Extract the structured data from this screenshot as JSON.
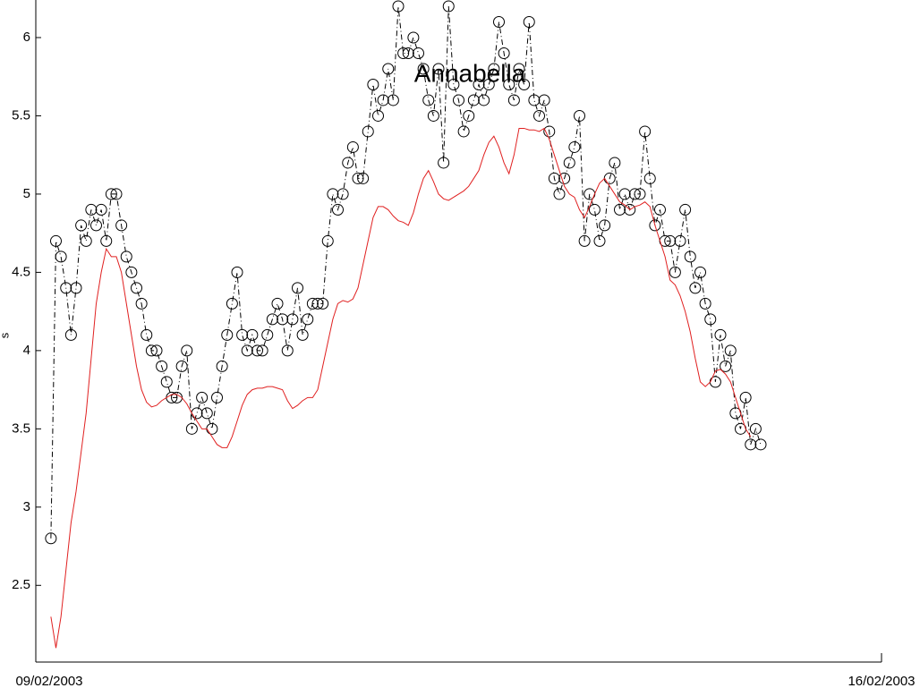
{
  "chart_data": {
    "type": "line",
    "title": "Annabella",
    "ylabel": "s",
    "x": [
      3,
      4,
      5,
      6,
      7,
      8,
      9,
      10,
      11,
      12,
      13,
      14,
      15,
      16,
      17,
      18,
      19,
      20,
      21,
      22,
      23,
      24,
      25,
      26,
      27,
      28,
      29,
      30,
      31,
      32,
      33,
      34,
      35,
      36,
      37,
      38,
      39,
      40,
      41,
      42,
      43,
      44,
      45,
      46,
      47,
      48,
      49,
      50,
      51,
      52,
      53,
      54,
      55,
      56,
      57,
      58,
      59,
      60,
      61,
      62,
      63,
      64,
      65,
      66,
      67,
      68,
      69,
      70,
      71,
      72,
      73,
      74,
      75,
      76,
      77,
      78,
      79,
      80,
      81,
      82,
      83,
      84,
      85,
      86,
      87,
      88,
      89,
      90,
      91,
      92,
      93,
      94,
      95,
      96,
      97,
      98,
      99,
      100,
      101,
      102,
      103,
      104,
      105,
      106,
      107,
      108,
      109,
      110,
      111,
      112,
      113,
      114,
      115,
      116,
      117,
      118,
      119,
      120,
      121,
      122,
      123,
      124,
      125,
      126,
      127,
      128,
      129,
      130,
      131,
      132,
      133,
      134,
      135,
      136,
      137,
      138,
      139,
      140,
      141,
      142,
      143,
      144
    ],
    "series": [
      {
        "color": "#000000",
        "style": "dashdot-circles",
        "values": [
          2.8,
          4.7,
          4.6,
          4.4,
          4.1,
          4.4,
          4.8,
          4.7,
          4.9,
          4.8,
          4.9,
          4.7,
          5.0,
          5.0,
          4.8,
          4.6,
          4.5,
          4.4,
          4.3,
          4.1,
          4.0,
          4.0,
          3.9,
          3.8,
          3.7,
          3.7,
          3.9,
          4.0,
          3.5,
          3.6,
          3.7,
          3.6,
          3.5,
          3.7,
          3.9,
          4.1,
          4.3,
          4.5,
          4.1,
          4.0,
          4.1,
          4.0,
          4.0,
          4.1,
          4.2,
          4.3,
          4.2,
          4.0,
          4.2,
          4.4,
          4.1,
          4.2,
          4.3,
          4.3,
          4.3,
          4.7,
          5.0,
          4.9,
          5.0,
          5.2,
          5.3,
          5.1,
          5.1,
          5.4,
          5.7,
          5.5,
          5.6,
          5.8,
          5.6,
          6.2,
          5.9,
          5.9,
          6.0,
          5.9,
          5.8,
          5.6,
          5.5,
          5.8,
          5.2,
          6.2,
          5.7,
          5.6,
          5.4,
          5.5,
          5.6,
          5.7,
          5.6,
          5.7,
          5.8,
          6.1,
          5.9,
          5.7,
          5.6,
          5.8,
          5.7,
          6.1,
          5.6,
          5.5,
          5.6,
          5.4,
          5.1,
          5.0,
          5.1,
          5.2,
          5.3,
          5.5,
          4.7,
          5.0,
          4.9,
          4.7,
          4.8,
          5.1,
          5.2,
          4.9,
          5.0,
          4.9,
          5.0,
          5.0,
          5.4,
          5.1,
          4.8,
          4.9,
          4.7,
          4.7,
          4.5,
          4.7,
          4.9,
          4.6,
          4.4,
          4.5,
          4.3,
          4.2,
          3.8,
          4.1,
          3.9,
          4.0,
          3.6,
          3.5,
          3.7,
          3.4,
          3.5,
          3.4
        ]
      },
      {
        "color": "#e02020",
        "style": "solid",
        "values": [
          2.3,
          2.1,
          2.3,
          2.6,
          2.9,
          3.1,
          3.35,
          3.6,
          3.95,
          4.3,
          4.5,
          4.65,
          4.6,
          4.6,
          4.5,
          4.3,
          4.1,
          3.9,
          3.75,
          3.67,
          3.64,
          3.65,
          3.68,
          3.7,
          3.72,
          3.72,
          3.7,
          3.66,
          3.6,
          3.55,
          3.5,
          3.5,
          3.45,
          3.4,
          3.38,
          3.38,
          3.45,
          3.55,
          3.65,
          3.72,
          3.75,
          3.76,
          3.76,
          3.77,
          3.77,
          3.76,
          3.75,
          3.68,
          3.63,
          3.65,
          3.68,
          3.7,
          3.7,
          3.75,
          3.9,
          4.05,
          4.2,
          4.3,
          4.32,
          4.31,
          4.33,
          4.4,
          4.55,
          4.7,
          4.85,
          4.92,
          4.92,
          4.9,
          4.86,
          4.83,
          4.82,
          4.8,
          4.88,
          5.0,
          5.1,
          5.15,
          5.08,
          5.0,
          4.97,
          4.96,
          4.98,
          5.0,
          5.02,
          5.05,
          5.1,
          5.15,
          5.25,
          5.33,
          5.37,
          5.3,
          5.2,
          5.13,
          5.25,
          5.42,
          5.42,
          5.41,
          5.41,
          5.4,
          5.42,
          5.35,
          5.25,
          5.15,
          5.05,
          5.0,
          4.98,
          4.9,
          4.85,
          4.92,
          5.0,
          5.07,
          5.1,
          5.05,
          5.0,
          4.95,
          4.93,
          4.9,
          4.92,
          4.93,
          4.95,
          4.92,
          4.8,
          4.7,
          4.6,
          4.45,
          4.42,
          4.35,
          4.25,
          4.12,
          3.95,
          3.8,
          3.77,
          3.8,
          3.87,
          3.88,
          3.85,
          3.8,
          3.7,
          3.6,
          3.5,
          3.45,
          null,
          null
        ]
      }
    ],
    "xlim": [
      0,
      168
    ],
    "xticks": [
      {
        "value": 0,
        "label": "09/02/2003"
      },
      {
        "value": 168,
        "label": "16/02/2003"
      }
    ],
    "ylim": [
      2.01,
      6.24
    ],
    "yticks": [
      2.5,
      3,
      3.5,
      4,
      4.5,
      5,
      5.5,
      6
    ]
  }
}
